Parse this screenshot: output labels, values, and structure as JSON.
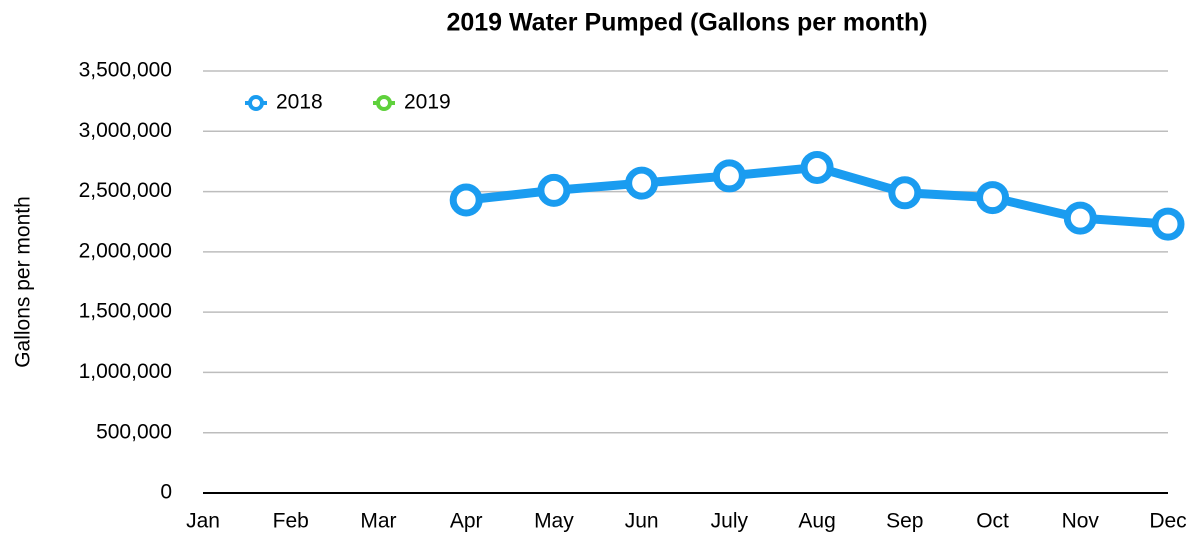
{
  "chart_data": {
    "type": "line",
    "title": "2019 Water Pumped (Gallons per month)",
    "y_label": "Gallons per month",
    "categories": [
      "Jan",
      "Feb",
      "Mar",
      "Apr",
      "May",
      "Jun",
      "July",
      "Aug",
      "Sep",
      "Oct",
      "Nov",
      "Dec"
    ],
    "series": [
      {
        "name": "2018",
        "color": "#1a9cf0",
        "values": [
          null,
          null,
          null,
          2430000,
          2510000,
          2570000,
          2630000,
          2700000,
          2490000,
          2450000,
          2280000,
          2230000
        ]
      },
      {
        "name": "2019",
        "color": "#5fd13c",
        "values": [
          null,
          null,
          null,
          null,
          null,
          null,
          null,
          null,
          null,
          null,
          null,
          null
        ]
      }
    ],
    "ylim": [
      0,
      3500000
    ],
    "yticks": [
      0,
      {
        "value": 500000,
        "label": "500,000"
      },
      {
        "value": 1000000,
        "label": "1,000,000"
      },
      {
        "value": 1500000,
        "label": "1,500,000"
      },
      {
        "value": 2000000,
        "label": "2,000,000"
      },
      {
        "value": 2500000,
        "label": "2,500,000"
      },
      {
        "value": 3000000,
        "label": "3,000,000"
      },
      {
        "value": 3500000,
        "label": "3,500,000"
      }
    ],
    "grid": true,
    "legend": "upper left"
  }
}
